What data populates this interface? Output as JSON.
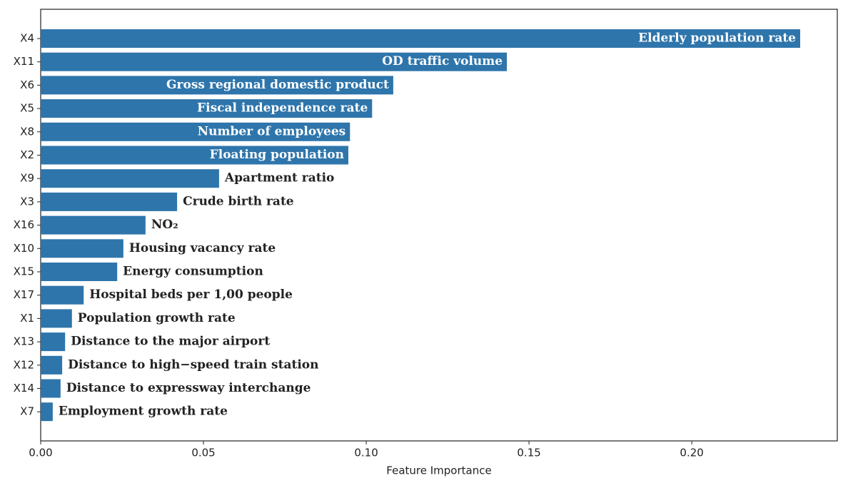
{
  "chart_data": {
    "type": "barh",
    "xlabel": "Feature Importance",
    "categories": [
      "X4",
      "X11",
      "X6",
      "X5",
      "X8",
      "X2",
      "X9",
      "X3",
      "X16",
      "X10",
      "X15",
      "X17",
      "X1",
      "X13",
      "X12",
      "X14",
      "X7"
    ],
    "values": [
      0.2333,
      0.1432,
      0.1083,
      0.1018,
      0.095,
      0.0945,
      0.0548,
      0.0419,
      0.0322,
      0.0254,
      0.0235,
      0.0132,
      0.0096,
      0.0075,
      0.0066,
      0.0061,
      0.0037
    ],
    "bar_labels": [
      "Elderly population rate",
      "OD traffic volume",
      "Gross regional domestic product",
      "Fiscal independence rate",
      "Number of employees",
      "Floating population",
      "Apartment ratio",
      "Crude birth rate",
      "NO₂",
      "Housing vacancy rate",
      "Energy consumption",
      "Hospital beds per 1,00 people",
      "Population growth rate",
      "Distance to the major airport",
      "Distance to high−speed train station",
      "Distance to expressway interchange",
      "Employment growth rate"
    ],
    "color": "#2e75ab",
    "xlim": [
      0,
      0.2447
    ],
    "xticks": [
      {
        "value": 0,
        "label": "0.00"
      },
      0.05,
      {
        "value": 0.1,
        "label": "0.10"
      },
      0.15,
      {
        "value": 0.2,
        "label": "0.20"
      }
    ]
  }
}
